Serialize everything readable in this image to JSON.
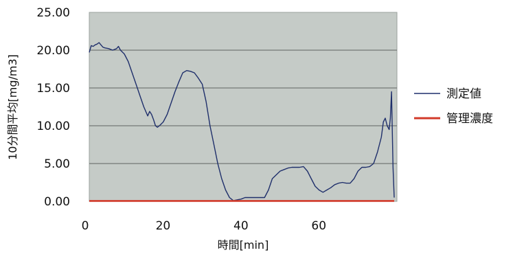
{
  "chart_data": {
    "type": "line",
    "title": "",
    "xlabel": "時間[min]",
    "ylabel": "10分間平均[mg/m3]",
    "xlim": [
      0,
      79
    ],
    "ylim": [
      0,
      25
    ],
    "x_ticks": [
      "0",
      "20",
      "40",
      "60"
    ],
    "y_ticks": [
      "0.00",
      "5.00",
      "10.00",
      "15.00",
      "20.00",
      "25.00"
    ],
    "grid": "horizontal",
    "legend_position": "right",
    "series": [
      {
        "name": "測定値",
        "color": "#1f2f6b",
        "points": [
          [
            0,
            19.7
          ],
          [
            0.5,
            20.6
          ],
          [
            1,
            20.5
          ],
          [
            1.5,
            20.7
          ],
          [
            2,
            20.8
          ],
          [
            2.5,
            21.0
          ],
          [
            3,
            20.7
          ],
          [
            3.5,
            20.4
          ],
          [
            4,
            20.3
          ],
          [
            5,
            20.2
          ],
          [
            6,
            20.0
          ],
          [
            7,
            20.2
          ],
          [
            7.5,
            20.5
          ],
          [
            8,
            20.0
          ],
          [
            9,
            19.5
          ],
          [
            10,
            18.5
          ],
          [
            11,
            17.0
          ],
          [
            12,
            15.5
          ],
          [
            13,
            14.0
          ],
          [
            14,
            12.5
          ],
          [
            15,
            11.3
          ],
          [
            15.5,
            11.9
          ],
          [
            16,
            11.5
          ],
          [
            16.5,
            10.8
          ],
          [
            17,
            10.0
          ],
          [
            17.5,
            9.8
          ],
          [
            18,
            10.0
          ],
          [
            19,
            10.5
          ],
          [
            20,
            11.5
          ],
          [
            21,
            13.0
          ],
          [
            22,
            14.5
          ],
          [
            23,
            15.8
          ],
          [
            24,
            17.0
          ],
          [
            25,
            17.3
          ],
          [
            26,
            17.2
          ],
          [
            27,
            17.0
          ],
          [
            28,
            16.3
          ],
          [
            29,
            15.5
          ],
          [
            30,
            13.2
          ],
          [
            31,
            10.0
          ],
          [
            32,
            7.5
          ],
          [
            33,
            5.0
          ],
          [
            34,
            3.0
          ],
          [
            35,
            1.5
          ],
          [
            36,
            0.5
          ],
          [
            37,
            0.1
          ],
          [
            38,
            0.2
          ],
          [
            39,
            0.3
          ],
          [
            40,
            0.5
          ],
          [
            41,
            0.5
          ],
          [
            42,
            0.5
          ],
          [
            43,
            0.5
          ],
          [
            44,
            0.5
          ],
          [
            45,
            0.5
          ],
          [
            46,
            1.5
          ],
          [
            47,
            3.0
          ],
          [
            48,
            3.5
          ],
          [
            49,
            4.0
          ],
          [
            50,
            4.2
          ],
          [
            51,
            4.4
          ],
          [
            52,
            4.5
          ],
          [
            53,
            4.5
          ],
          [
            54,
            4.5
          ],
          [
            55,
            4.6
          ],
          [
            56,
            4.0
          ],
          [
            57,
            3.0
          ],
          [
            58,
            2.0
          ],
          [
            59,
            1.5
          ],
          [
            60,
            1.2
          ],
          [
            61,
            1.5
          ],
          [
            62,
            1.8
          ],
          [
            63,
            2.2
          ],
          [
            64,
            2.4
          ],
          [
            65,
            2.5
          ],
          [
            66,
            2.4
          ],
          [
            67,
            2.4
          ],
          [
            68,
            3.0
          ],
          [
            69,
            4.0
          ],
          [
            70,
            4.5
          ],
          [
            71,
            4.5
          ],
          [
            72,
            4.6
          ],
          [
            73,
            5.0
          ],
          [
            74,
            6.5
          ],
          [
            75,
            8.5
          ],
          [
            75.5,
            10.5
          ],
          [
            76,
            11.0
          ],
          [
            76.5,
            10.0
          ],
          [
            77,
            9.5
          ],
          [
            77.3,
            11.0
          ],
          [
            77.6,
            14.5
          ],
          [
            78,
            4.5
          ],
          [
            78.3,
            0.5
          ]
        ]
      },
      {
        "name": "管理濃度",
        "color": "#d23a2a",
        "points": [
          [
            0,
            0.05
          ],
          [
            78.3,
            0.05
          ]
        ]
      }
    ]
  }
}
